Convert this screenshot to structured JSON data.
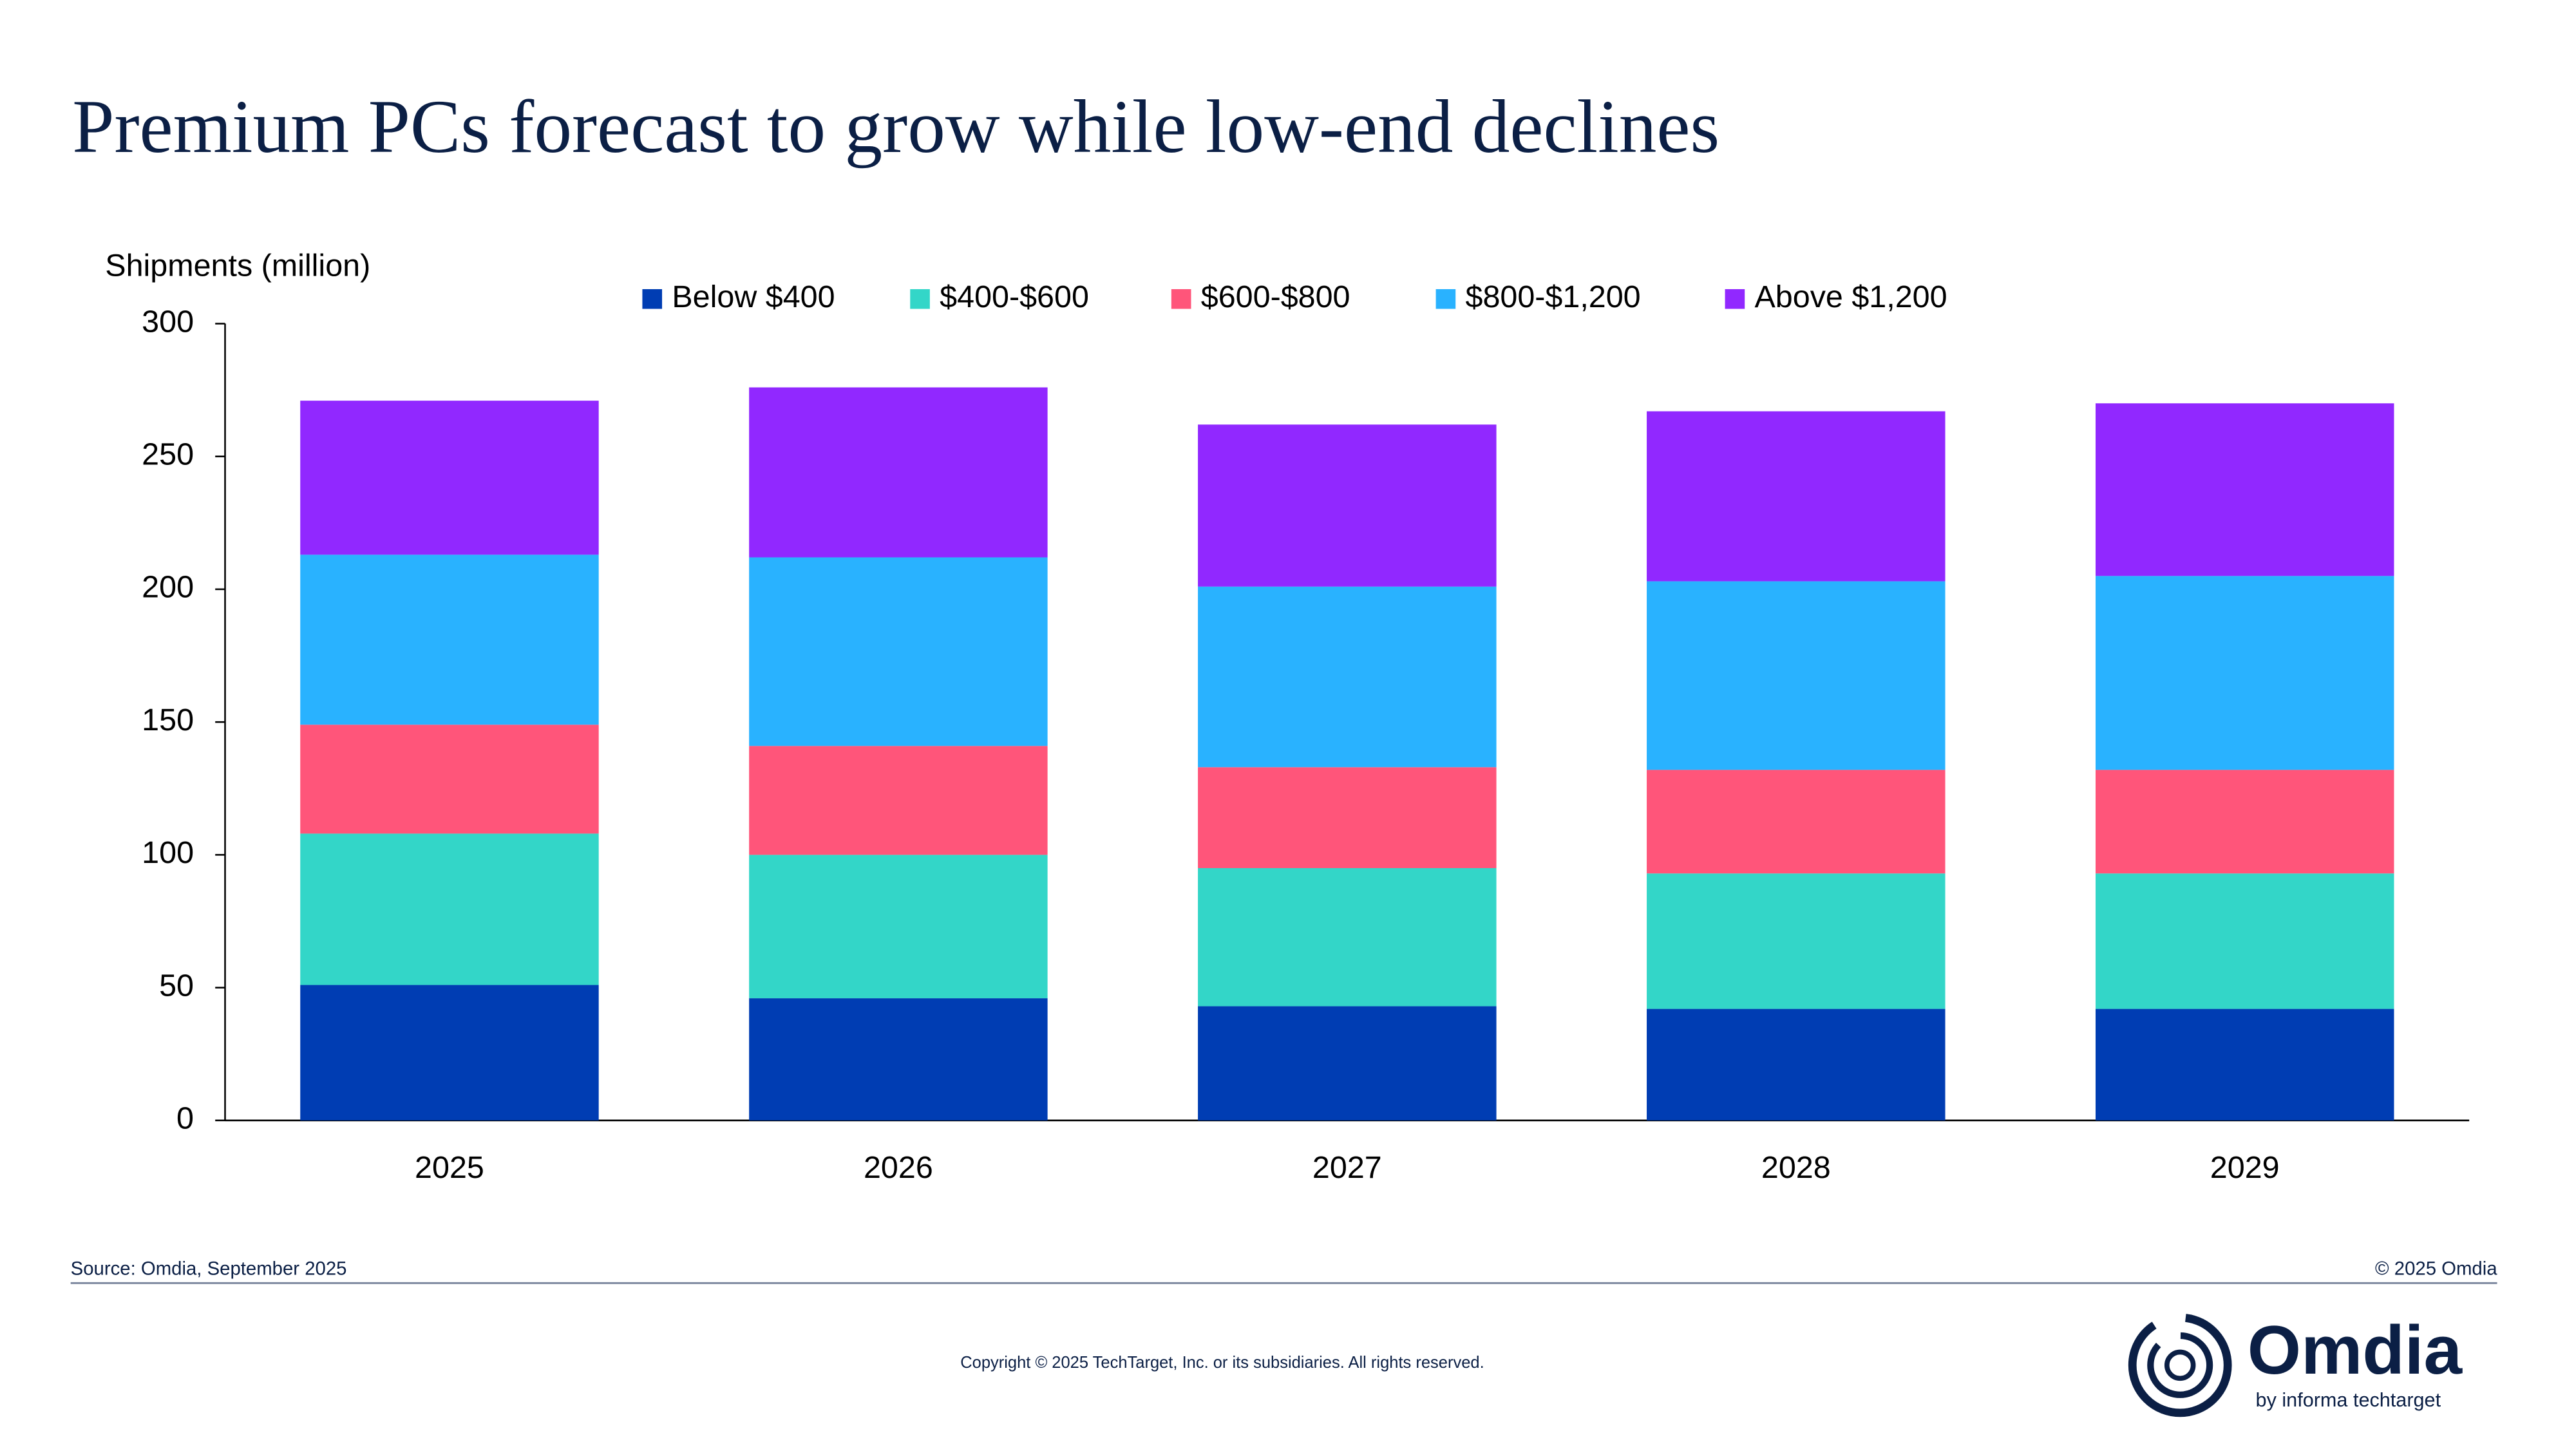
{
  "chart_data": {
    "type": "stacked-bar",
    "title": "Premium PCs forecast to grow while low-end declines",
    "y_label": "Shipments (million)",
    "categories": [
      "2025",
      "2026",
      "2027",
      "2028",
      "2029"
    ],
    "series": [
      {
        "name": "Below $400",
        "color": "#003db3",
        "values": [
          51,
          46,
          43,
          42,
          42
        ]
      },
      {
        "name": "$400-$600",
        "color": "#33d6c8",
        "values": [
          57,
          54,
          52,
          51,
          51
        ]
      },
      {
        "name": "$600-$800",
        "color": "#ff557a",
        "values": [
          41,
          41,
          38,
          39,
          39
        ]
      },
      {
        "name": "$800-$1,200",
        "color": "#29b2ff",
        "values": [
          64,
          71,
          68,
          71,
          73
        ]
      },
      {
        "name": "Above $1,200",
        "color": "#9128ff",
        "values": [
          58,
          64,
          61,
          64,
          65
        ]
      }
    ],
    "ylim": [
      0,
      300
    ],
    "yticks": [
      0,
      50,
      100,
      150,
      200,
      250,
      300
    ],
    "grid": false,
    "legend": "top"
  },
  "footer": {
    "source": "Source: Omdia, September 2025",
    "rights": "© 2025 Omdia",
    "copyright": "Copyright © 2025 TechTarget, Inc. or its subsidiaries. All rights reserved."
  },
  "logo": {
    "name": "Omdia",
    "tagline": "by informa techtarget"
  }
}
